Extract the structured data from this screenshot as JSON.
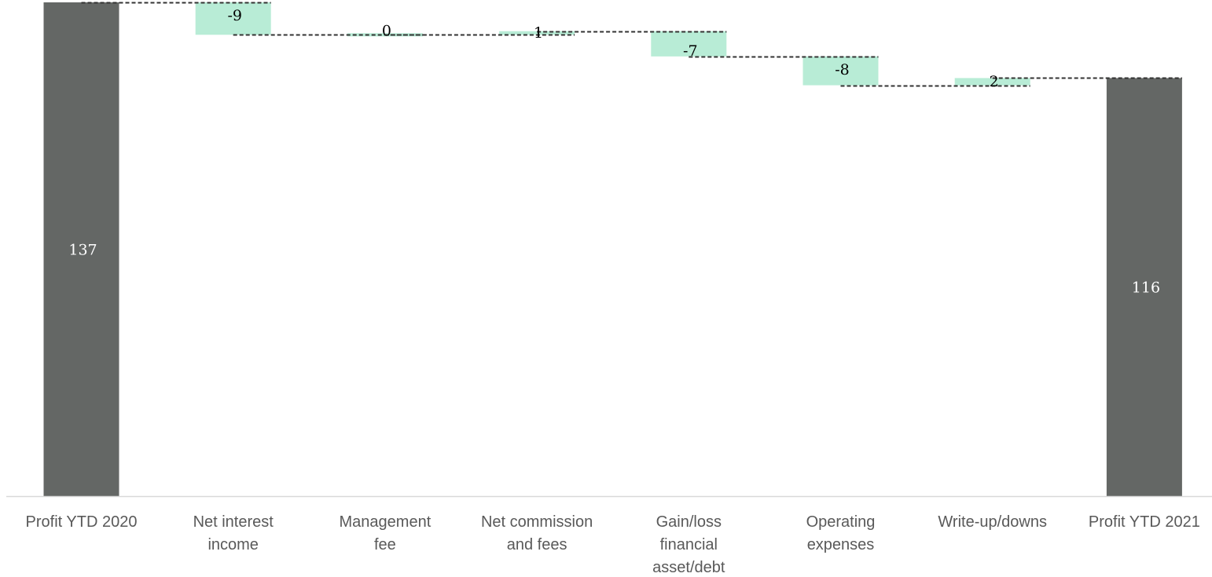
{
  "chart_data": {
    "type": "waterfall",
    "categories": [
      [
        "Profit YTD 2020"
      ],
      [
        "Net interest",
        "income"
      ],
      [
        "Management",
        "fee"
      ],
      [
        "Net commission",
        "and fees"
      ],
      [
        "Gain/loss",
        "financial",
        "asset/debt"
      ],
      [
        "Operating",
        "expenses"
      ],
      [
        "Write-up/downs"
      ],
      [
        "Profit YTD 2021"
      ]
    ],
    "values": [
      137,
      -9,
      0,
      1,
      -7,
      -8,
      2,
      116
    ],
    "labels": [
      "137",
      "-9",
      "0",
      "1",
      "-7",
      "-8",
      "2",
      "116"
    ],
    "is_total": [
      true,
      false,
      false,
      false,
      false,
      false,
      false,
      true
    ],
    "ylim": [
      0,
      137
    ],
    "grid": false,
    "colors": {
      "total": "#646765",
      "delta": "#b8ecd6",
      "connector": "#333333",
      "axis": "#d9d9d9"
    }
  }
}
